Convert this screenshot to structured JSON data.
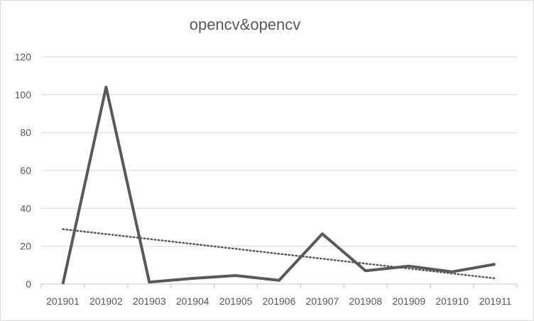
{
  "chart_data": {
    "type": "line",
    "title": "opencv&opencv",
    "categories": [
      "201901",
      "201902",
      "201903",
      "201904",
      "201905",
      "201906",
      "201907",
      "201908",
      "201909",
      "201910",
      "201911"
    ],
    "series": [
      {
        "values": [
          0,
          104,
          1,
          3,
          4.5,
          2,
          26.5,
          7,
          9.5,
          6.5,
          10.5
        ],
        "color": "#595959"
      }
    ],
    "trendline": {
      "type": "linear",
      "style": "dotted",
      "color": "#595959",
      "start": 29,
      "end": 3
    },
    "ylim": [
      0,
      120
    ],
    "yticks": [
      "0",
      "20",
      "40",
      "60",
      "80",
      "100",
      "120"
    ],
    "xlabel": "",
    "ylabel": "",
    "grid": true,
    "legend": "none"
  }
}
